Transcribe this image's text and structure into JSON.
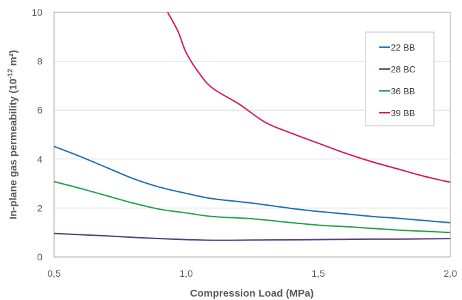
{
  "chart_data": {
    "type": "line",
    "xlabel": "Compression Load (MPa)",
    "ylabel_prefix": "In-plane gas permeability (10",
    "ylabel_exp": "-12",
    "ylabel_suffix": " m²)",
    "xlim": [
      0.5,
      2.0
    ],
    "ylim": [
      0,
      10
    ],
    "x_ticks": [
      {
        "value": 0.5,
        "label": "0,5"
      },
      {
        "value": 1.0,
        "label": "1,0"
      },
      {
        "value": 1.5,
        "label": "1,5"
      },
      {
        "value": 2.0,
        "label": "2,0"
      }
    ],
    "y_ticks": [
      {
        "value": 0,
        "label": "0"
      },
      {
        "value": 2,
        "label": "2"
      },
      {
        "value": 4,
        "label": "4"
      },
      {
        "value": 6,
        "label": "6"
      },
      {
        "value": 8,
        "label": "8"
      },
      {
        "value": 10,
        "label": "10"
      }
    ],
    "grid": {
      "horizontal": true,
      "vertical": false
    },
    "legend_position": "top-right",
    "series": [
      {
        "name": "22 BB",
        "color": "#1f6fb4",
        "points": [
          [
            0.5,
            4.52
          ],
          [
            0.6,
            4.1
          ],
          [
            0.7,
            3.65
          ],
          [
            0.8,
            3.2
          ],
          [
            0.9,
            2.85
          ],
          [
            1.0,
            2.6
          ],
          [
            1.1,
            2.38
          ],
          [
            1.25,
            2.2
          ],
          [
            1.4,
            1.98
          ],
          [
            1.5,
            1.86
          ],
          [
            1.6,
            1.76
          ],
          [
            1.7,
            1.66
          ],
          [
            1.8,
            1.58
          ],
          [
            1.9,
            1.49
          ],
          [
            2.0,
            1.4
          ]
        ]
      },
      {
        "name": "28 BC",
        "color": "#5a3a7a",
        "points": [
          [
            0.5,
            0.96
          ],
          [
            0.6,
            0.91
          ],
          [
            0.7,
            0.86
          ],
          [
            0.8,
            0.8
          ],
          [
            0.9,
            0.75
          ],
          [
            1.0,
            0.71
          ],
          [
            1.1,
            0.68
          ],
          [
            1.25,
            0.69
          ],
          [
            1.4,
            0.7
          ],
          [
            1.5,
            0.71
          ],
          [
            1.6,
            0.72
          ],
          [
            1.7,
            0.73
          ],
          [
            1.8,
            0.73
          ],
          [
            1.9,
            0.74
          ],
          [
            2.0,
            0.75
          ]
        ]
      },
      {
        "name": "36 BB",
        "color": "#22a14a",
        "points": [
          [
            0.5,
            3.08
          ],
          [
            0.6,
            2.8
          ],
          [
            0.7,
            2.5
          ],
          [
            0.8,
            2.2
          ],
          [
            0.9,
            1.95
          ],
          [
            1.0,
            1.8
          ],
          [
            1.1,
            1.65
          ],
          [
            1.25,
            1.56
          ],
          [
            1.4,
            1.4
          ],
          [
            1.5,
            1.3
          ],
          [
            1.6,
            1.24
          ],
          [
            1.7,
            1.17
          ],
          [
            1.8,
            1.1
          ],
          [
            1.9,
            1.05
          ],
          [
            2.0,
            1.0
          ]
        ]
      },
      {
        "name": "39 BB",
        "color": "#d6175f",
        "points": [
          [
            0.93,
            10.0
          ],
          [
            0.97,
            9.2
          ],
          [
            1.0,
            8.35
          ],
          [
            1.05,
            7.5
          ],
          [
            1.1,
            6.9
          ],
          [
            1.2,
            6.25
          ],
          [
            1.3,
            5.5
          ],
          [
            1.4,
            5.05
          ],
          [
            1.5,
            4.65
          ],
          [
            1.6,
            4.25
          ],
          [
            1.7,
            3.9
          ],
          [
            1.8,
            3.6
          ],
          [
            1.9,
            3.3
          ],
          [
            2.0,
            3.05
          ]
        ]
      }
    ]
  }
}
